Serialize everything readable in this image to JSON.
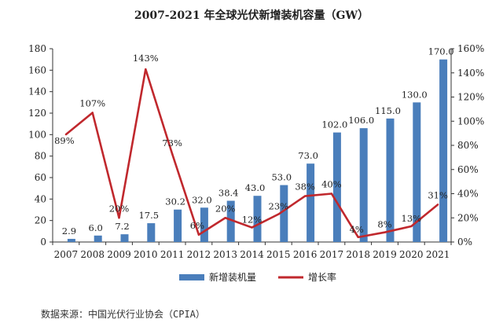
{
  "chart_data": {
    "type": "bar",
    "title": "2007-2021 年全球光伏新增装机容量（GW）",
    "categories": [
      "2007",
      "2008",
      "2009",
      "2010",
      "2011",
      "2012",
      "2013",
      "2014",
      "2015",
      "2016",
      "2017",
      "2018",
      "2019",
      "2020",
      "2021"
    ],
    "series": [
      {
        "name": "新增装机量",
        "type": "bar",
        "axis": "left",
        "color": "#4a7ebb",
        "values": [
          2.9,
          6.0,
          7.2,
          17.5,
          30.2,
          32.0,
          38.4,
          43.0,
          53.0,
          73.0,
          102.0,
          106.0,
          115.0,
          130.0,
          170.0
        ],
        "labels": [
          "2.9",
          "6.0",
          "7.2",
          "17.5",
          "30.2",
          "32.0",
          "38.4",
          "43.0",
          "53.0",
          "73.0",
          "102.0",
          "106.0",
          "115.0",
          "130.0",
          "170.0"
        ]
      },
      {
        "name": "增长率",
        "type": "line",
        "axis": "right",
        "color": "#c0282d",
        "values": [
          89,
          107,
          20,
          143,
          73,
          6,
          20,
          12,
          23,
          38,
          40,
          4,
          8,
          13,
          31
        ],
        "labels": [
          "89%",
          "107%",
          "20%",
          "143%",
          "73%",
          "6%",
          "20%",
          "12%",
          "23%",
          "38%",
          "40%",
          "4%",
          "8%",
          "13%",
          "31%"
        ]
      }
    ],
    "ylim": [
      0,
      180
    ],
    "yticks": [
      "0",
      "20",
      "40",
      "60",
      "80",
      "100",
      "120",
      "140",
      "160",
      "180"
    ],
    "y2lim": [
      0,
      160
    ],
    "y2ticks": [
      "0%",
      "20%",
      "40%",
      "60%",
      "80%",
      "100%",
      "120%",
      "140%",
      "160%"
    ],
    "grid": false,
    "legend": "bottom"
  },
  "source": "数据来源：中国光伏行业协会（CPIA）"
}
